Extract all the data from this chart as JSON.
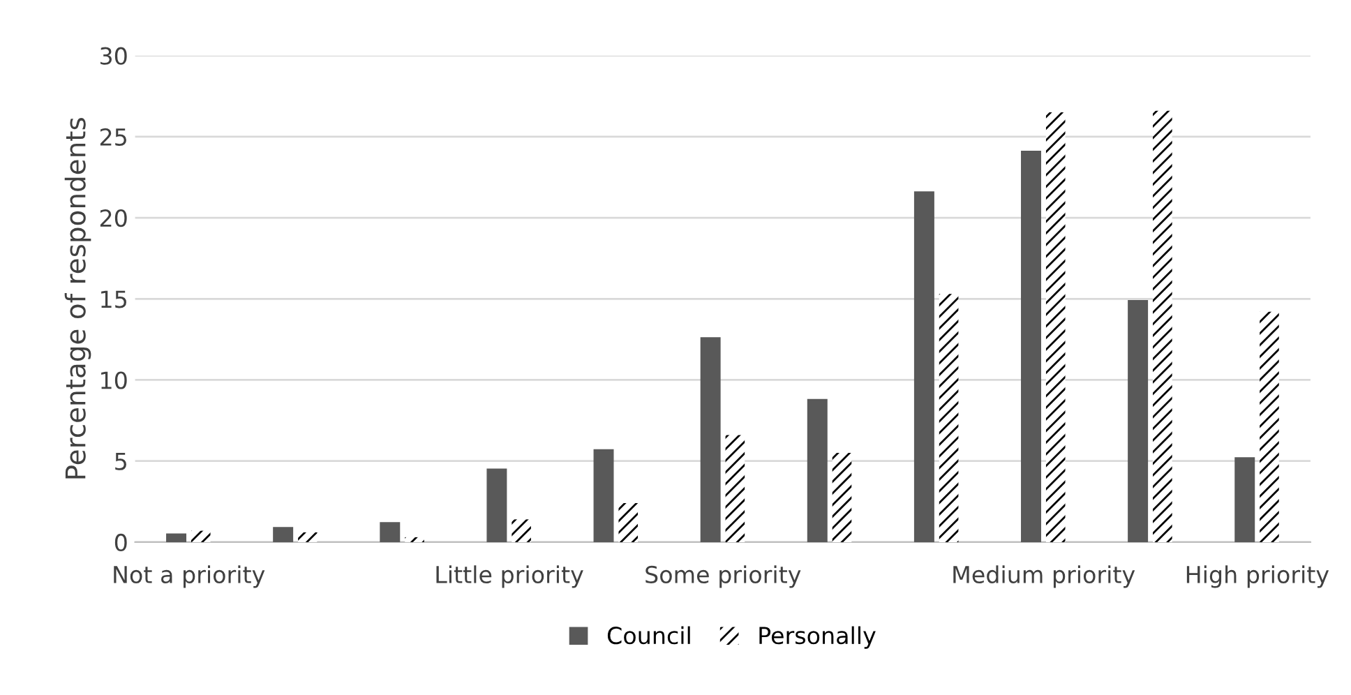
{
  "chart_data": {
    "type": "bar",
    "ylabel": "Percentage of respondents",
    "categories": [
      "Not a priority",
      null,
      null,
      "Little priority",
      null,
      "Some priority",
      null,
      null,
      "Medium priority",
      null,
      "High priority"
    ],
    "series": [
      {
        "name": "Council",
        "color": "#595959",
        "values": [
          0.5,
          0.9,
          1.2,
          4.5,
          5.7,
          12.6,
          8.8,
          21.6,
          24.1,
          14.9,
          5.2
        ]
      },
      {
        "name": "Personally",
        "color": "#ffffff",
        "values": [
          0.7,
          0.6,
          0.3,
          1.4,
          2.4,
          6.6,
          5.5,
          15.3,
          26.5,
          26.6,
          14.2
        ]
      }
    ],
    "ylim": [
      0,
      30
    ],
    "yticks": [
      0,
      5,
      10,
      15,
      20,
      25,
      30
    ],
    "grid": "y",
    "legend": "bottom"
  }
}
